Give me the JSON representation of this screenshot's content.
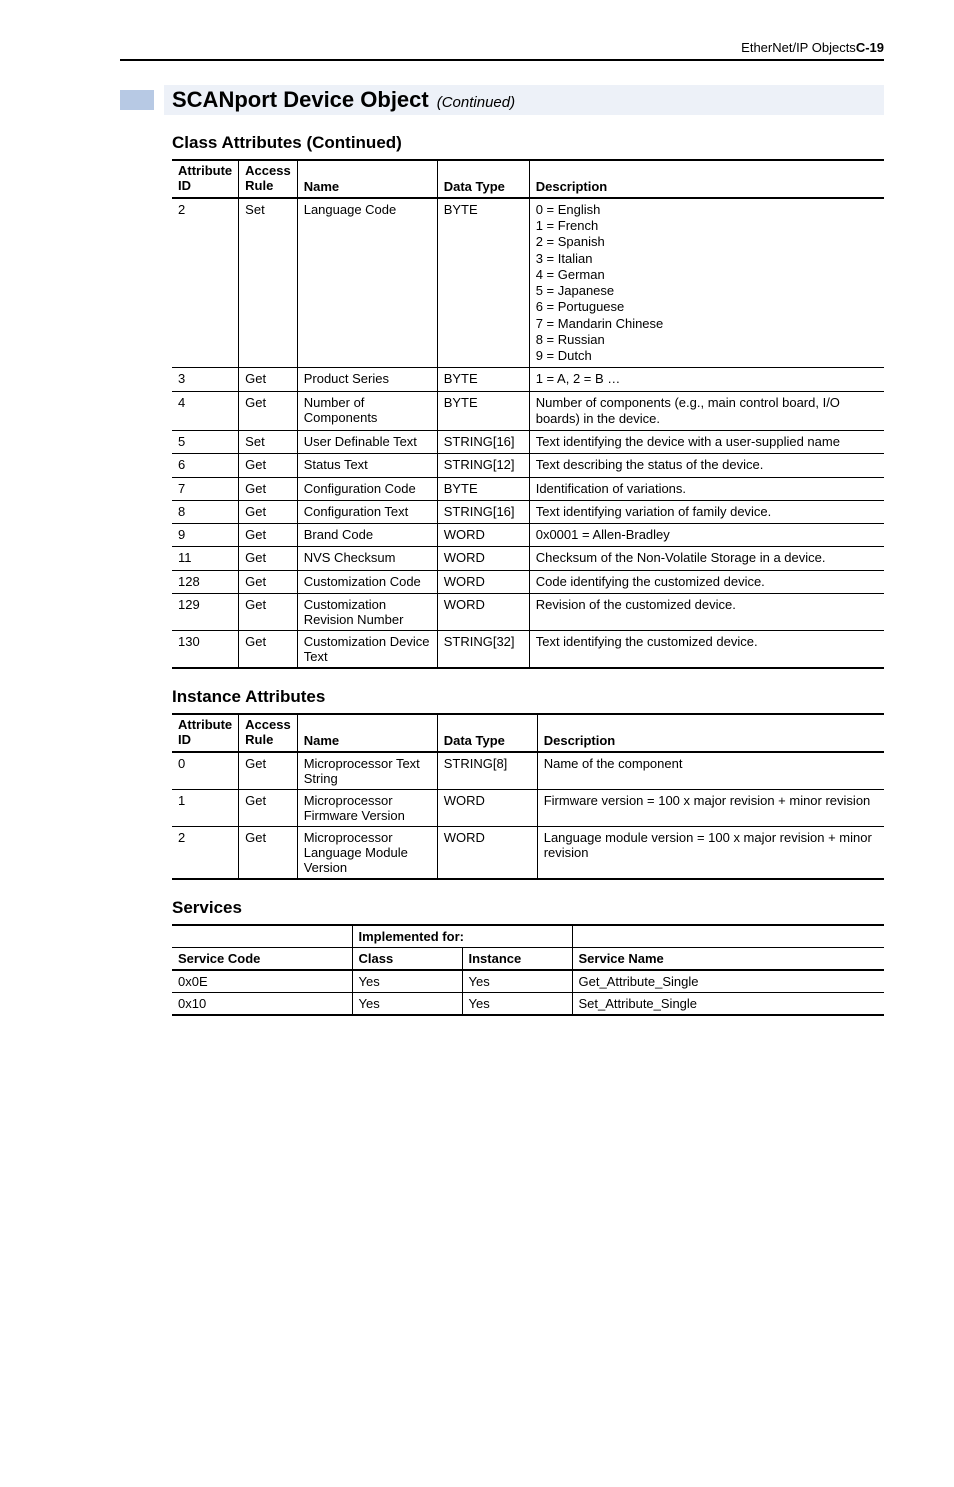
{
  "header": {
    "title": "EtherNet/IP Objects",
    "page": "C-19"
  },
  "section": {
    "title": "SCANport Device Object",
    "continued": "(Continued)"
  },
  "classAttr": {
    "heading": "Class Attributes (Continued)",
    "cols": {
      "attr1": "Attribute",
      "attr2": "ID",
      "access1": "Access",
      "access2": "Rule",
      "name": "Name",
      "type": "Data Type",
      "desc": "Description"
    },
    "rows": [
      {
        "id": "2",
        "rule": "Set",
        "name": "Language Code",
        "type": "BYTE",
        "desc": [
          "0 = English",
          "1 = French",
          "2 = Spanish",
          "3 = Italian",
          "4 = German",
          "5 = Japanese",
          "6 = Portuguese",
          "7 = Mandarin Chinese",
          "8 = Russian",
          "9 = Dutch"
        ]
      },
      {
        "id": "3",
        "rule": "Get",
        "name": "Product Series",
        "type": "BYTE",
        "desc": [
          "1 = A, 2 = B …"
        ]
      },
      {
        "id": "4",
        "rule": "Get",
        "name": "Number of Components",
        "type": "BYTE",
        "desc": [
          "Number of components (e.g., main control board, I/O boards) in the device."
        ]
      },
      {
        "id": "5",
        "rule": "Set",
        "name": "User Definable Text",
        "type": "STRING[16]",
        "desc": [
          "Text identifying the device with a user-supplied name"
        ]
      },
      {
        "id": "6",
        "rule": "Get",
        "name": "Status Text",
        "type": "STRING[12]",
        "desc": [
          "Text describing the status of the device."
        ]
      },
      {
        "id": "7",
        "rule": "Get",
        "name": "Configuration Code",
        "type": "BYTE",
        "desc": [
          "Identification of variations."
        ]
      },
      {
        "id": "8",
        "rule": "Get",
        "name": "Configuration Text",
        "type": "STRING[16]",
        "desc": [
          "Text identifying variation of family device."
        ]
      },
      {
        "id": "9",
        "rule": "Get",
        "name": "Brand Code",
        "type": "WORD",
        "desc": [
          "0x0001 = Allen-Bradley"
        ]
      },
      {
        "id": "11",
        "rule": "Get",
        "name": "NVS Checksum",
        "type": "WORD",
        "desc": [
          "Checksum of the Non-Volatile Storage in a device."
        ]
      },
      {
        "id": "128",
        "rule": "Get",
        "name": "Customization Code",
        "type": "WORD",
        "desc": [
          "Code identifying the customized device."
        ]
      },
      {
        "id": "129",
        "rule": "Get",
        "name": "Customization Revision Number",
        "type": "WORD",
        "desc": [
          "Revision of the customized device."
        ]
      },
      {
        "id": "130",
        "rule": "Get",
        "name": "Customization Device Text",
        "type": "STRING[32]",
        "desc": [
          "Text identifying the customized device."
        ]
      }
    ]
  },
  "instAttr": {
    "heading": "Instance Attributes",
    "cols": {
      "attr1": "Attribute",
      "attr2": "ID",
      "access1": "Access",
      "access2": "Rule",
      "name": "Name",
      "type": "Data Type",
      "desc": "Description"
    },
    "rows": [
      {
        "id": "0",
        "rule": "Get",
        "name": "Microprocessor Text String",
        "type": "STRING[8]",
        "desc": "Name of the component"
      },
      {
        "id": "1",
        "rule": "Get",
        "name": "Microprocessor Firmware Version",
        "type": "WORD",
        "desc": "Firmware version = 100 x major revision + minor revision"
      },
      {
        "id": "2",
        "rule": "Get",
        "name": "Microprocessor Language Module Version",
        "type": "WORD",
        "desc": "Language module version = 100 x major revision + minor revision"
      }
    ]
  },
  "services": {
    "heading": "Services",
    "cols": {
      "impl": "Implemented for:",
      "code": "Service Code",
      "class": "Class",
      "instance": "Instance",
      "name": "Service Name"
    },
    "rows": [
      {
        "code": "0x0E",
        "class": "Yes",
        "instance": "Yes",
        "name": "Get_Attribute_Single"
      },
      {
        "code": "0x10",
        "class": "Yes",
        "instance": "Yes",
        "name": "Set_Attribute_Single"
      }
    ]
  }
}
